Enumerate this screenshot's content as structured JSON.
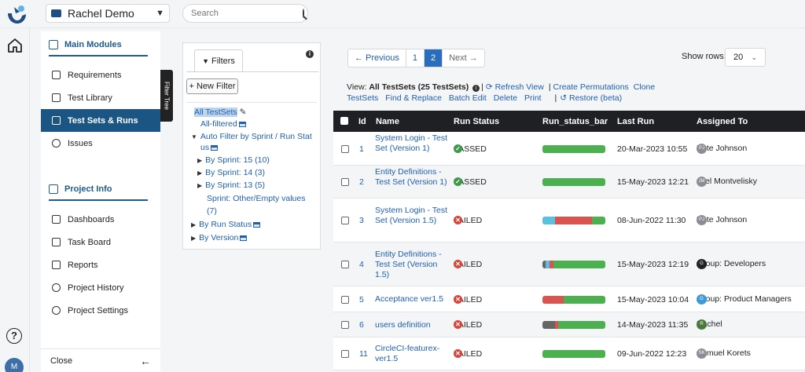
{
  "topbar": {
    "project": "Rachel Demo",
    "search_placeholder": "Search"
  },
  "rail": {
    "avatar_initial": "M",
    "help": "?"
  },
  "sidebar": {
    "main_modules": "Main Modules",
    "main_items": [
      {
        "label": "Requirements",
        "icon": "document-icon"
      },
      {
        "label": "Test Library",
        "icon": "library-icon"
      },
      {
        "label": "Test Sets & Runs",
        "icon": "clipboard-icon",
        "active": true
      },
      {
        "label": "Issues",
        "icon": "bug-icon"
      }
    ],
    "project_info": "Project Info",
    "info_items": [
      {
        "label": "Dashboards",
        "icon": "dashboard-icon"
      },
      {
        "label": "Task Board",
        "icon": "board-icon"
      },
      {
        "label": "Reports",
        "icon": "report-icon"
      },
      {
        "label": "Project History",
        "icon": "history-icon"
      },
      {
        "label": "Project Settings",
        "icon": "gear-icon"
      }
    ],
    "close": "Close"
  },
  "filter_tree_tab": "Filter Tree",
  "filters": {
    "tab": "Filters",
    "new_filter": "+ New Filter",
    "tree": {
      "all_testsets": "All TestSets",
      "all_filtered": "All-filtered",
      "auto_filter_1": "Auto Filter by Sprint / Run Stat",
      "auto_filter_2": "us",
      "sprint15": "By Sprint: 15 (10)",
      "sprint14": "By Sprint: 14 (3)",
      "sprint13": "By Sprint: 13 (5)",
      "sprint_other_1": "Sprint: Other/Empty values",
      "sprint_other_2": "(7)",
      "by_run_status": "By Run Status",
      "by_version": "By Version"
    }
  },
  "pager": {
    "prev": "← Previous",
    "p1": "1",
    "p2": "2",
    "next": "Next →"
  },
  "show_rows": {
    "label": "Show rows:",
    "value": "20"
  },
  "toolbar": {
    "view_label": "View:",
    "view_value": "All TestSets (25 TestSets)",
    "refresh": "Refresh View",
    "create_permutations": "Create Permutations",
    "clone": "Clone",
    "testsets": "TestSets",
    "find_replace": "Find & Replace",
    "batch_edit": "Batch Edit",
    "delete": "Delete",
    "print": "Print",
    "restore": "Restore (beta)"
  },
  "table": {
    "headers": {
      "id": "Id",
      "name": "Name",
      "run_status": "Run Status",
      "bar": "Run_status_bar",
      "last_run": "Last Run",
      "assigned": "Assigned To"
    },
    "rows": [
      {
        "id": "1",
        "name": "System Login - Test Set (Version 1)",
        "status": "PASSED",
        "last_run": "20-Mar-2023 10:55",
        "assigned": "Pete Johnson",
        "initials": "PJ",
        "bar": [
          {
            "c": "#4caf50",
            "v": 100
          }
        ]
      },
      {
        "id": "2",
        "name": "Entity Definitions - Test Set (Version 1)",
        "status": "PASSED",
        "last_run": "15-May-2023 12:21",
        "assigned": "Joel Montvelisky",
        "initials": "JM",
        "bar": [
          {
            "c": "#4caf50",
            "v": 100
          }
        ]
      },
      {
        "id": "3",
        "name": "System Login - Test Set (Version 1.5)",
        "status": "FAILED",
        "last_run": "08-Jun-2022 11:30",
        "assigned": "Pete Johnson",
        "initials": "PJ",
        "bar": [
          {
            "c": "#5bc0de",
            "v": 20
          },
          {
            "c": "#d9534f",
            "v": 59
          },
          {
            "c": "#4caf50",
            "v": 21
          }
        ]
      },
      {
        "id": "4",
        "name": "Entity Definitions - Test Set (Version 1.5)",
        "status": "FAILED",
        "last_run": "15-May-2023 12:19",
        "assigned": "Group: Developers",
        "initials": "G",
        "bar": [
          {
            "c": "#666",
            "v": 5
          },
          {
            "c": "#5bc0de",
            "v": 6
          },
          {
            "c": "#d9534f",
            "v": 6
          },
          {
            "c": "#4caf50",
            "v": 83
          }
        ]
      },
      {
        "id": "5",
        "name": "Acceptance ver1.5",
        "status": "FAILED",
        "last_run": "15-May-2023 10:04",
        "assigned": "Group: Product Managers",
        "initials": "G",
        "bar": [
          {
            "c": "#d9534f",
            "v": 34
          },
          {
            "c": "#4caf50",
            "v": 66
          }
        ]
      },
      {
        "id": "6",
        "name": "users definition",
        "status": "FAILED",
        "last_run": "14-May-2023 11:35",
        "assigned": "Rachel",
        "initials": "R",
        "bar": [
          {
            "c": "#666",
            "v": 20
          },
          {
            "c": "#d9534f",
            "v": 5
          },
          {
            "c": "#4caf50",
            "v": 75
          }
        ]
      },
      {
        "id": "11",
        "name": "CircleCI-featurex-ver1.5",
        "status": "FAILED",
        "last_run": "09-Jun-2022 12:23",
        "assigned": "Shmuel Korets",
        "initials": "SK",
        "bar": [
          {
            "c": "#4caf50",
            "v": 100
          }
        ]
      }
    ]
  }
}
